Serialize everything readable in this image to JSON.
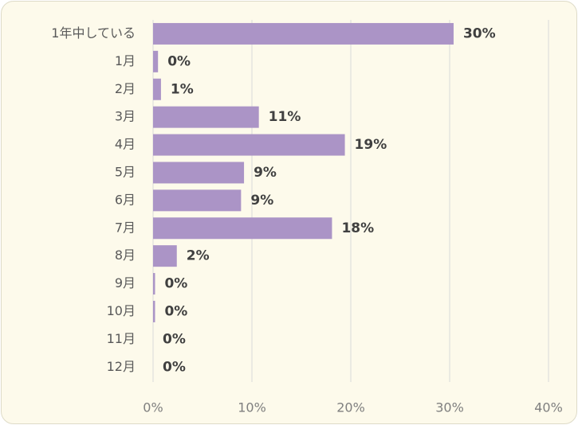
{
  "chart_data": {
    "type": "bar",
    "orientation": "horizontal",
    "categories": [
      "1年中している",
      "1月",
      "2月",
      "3月",
      "4月",
      "5月",
      "6月",
      "7月",
      "8月",
      "9月",
      "10月",
      "11月",
      "12月"
    ],
    "values": [
      30.4,
      0.5,
      0.8,
      10.7,
      19.4,
      9.2,
      8.9,
      18.1,
      2.4,
      0.2,
      0.2,
      0.0,
      0.0
    ],
    "data_labels": [
      "30%",
      "0%",
      "1%",
      "11%",
      "19%",
      "9%",
      "9%",
      "18%",
      "2%",
      "0%",
      "0%",
      "0%",
      "0%"
    ],
    "xlim": [
      0,
      40
    ],
    "x_ticks": [
      0,
      10,
      20,
      30,
      40
    ],
    "x_tick_labels": [
      "0%",
      "10%",
      "20%",
      "30%",
      "40%"
    ],
    "grid": "vertical",
    "legend": "none",
    "bar_color": "#ab94c6",
    "background_color": "#fdfaeb"
  }
}
